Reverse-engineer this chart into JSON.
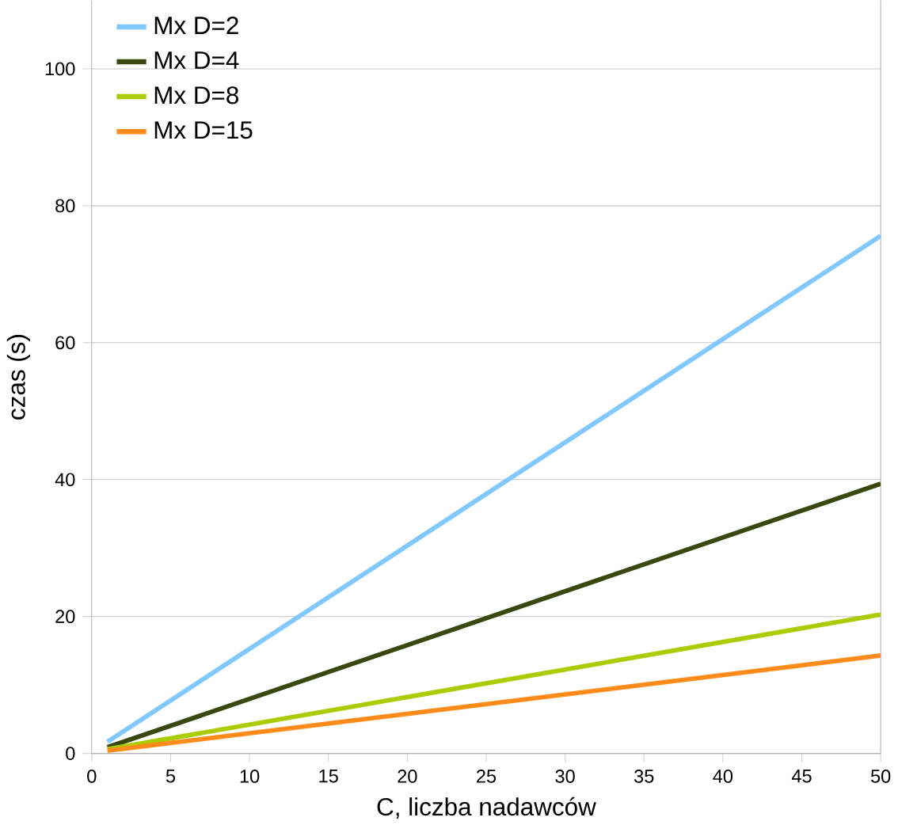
{
  "chart_data": {
    "type": "line",
    "xlabel": "C, liczba nadawców",
    "ylabel": "czas (s)",
    "x": [
      1,
      50
    ],
    "series": [
      {
        "name": "Mx D=2",
        "color": "#80c8ff",
        "values": [
          1.7,
          75.6
        ]
      },
      {
        "name": "Mx D=4",
        "color": "#3a470e",
        "values": [
          0.9,
          39.4
        ]
      },
      {
        "name": "Mx D=8",
        "color": "#aacc00",
        "values": [
          0.6,
          20.3
        ]
      },
      {
        "name": "Mx D=15",
        "color": "#ff8c1a",
        "values": [
          0.4,
          14.3
        ]
      }
    ],
    "xlim": [
      0,
      50
    ],
    "ylim": [
      0,
      110
    ],
    "xticks": [
      0,
      5,
      10,
      15,
      20,
      25,
      30,
      35,
      40,
      45,
      50
    ],
    "yticks": [
      0,
      20,
      40,
      60,
      80,
      100
    ],
    "grid": "y",
    "legend": "top left",
    "marker": "none",
    "line_style": "solid"
  }
}
